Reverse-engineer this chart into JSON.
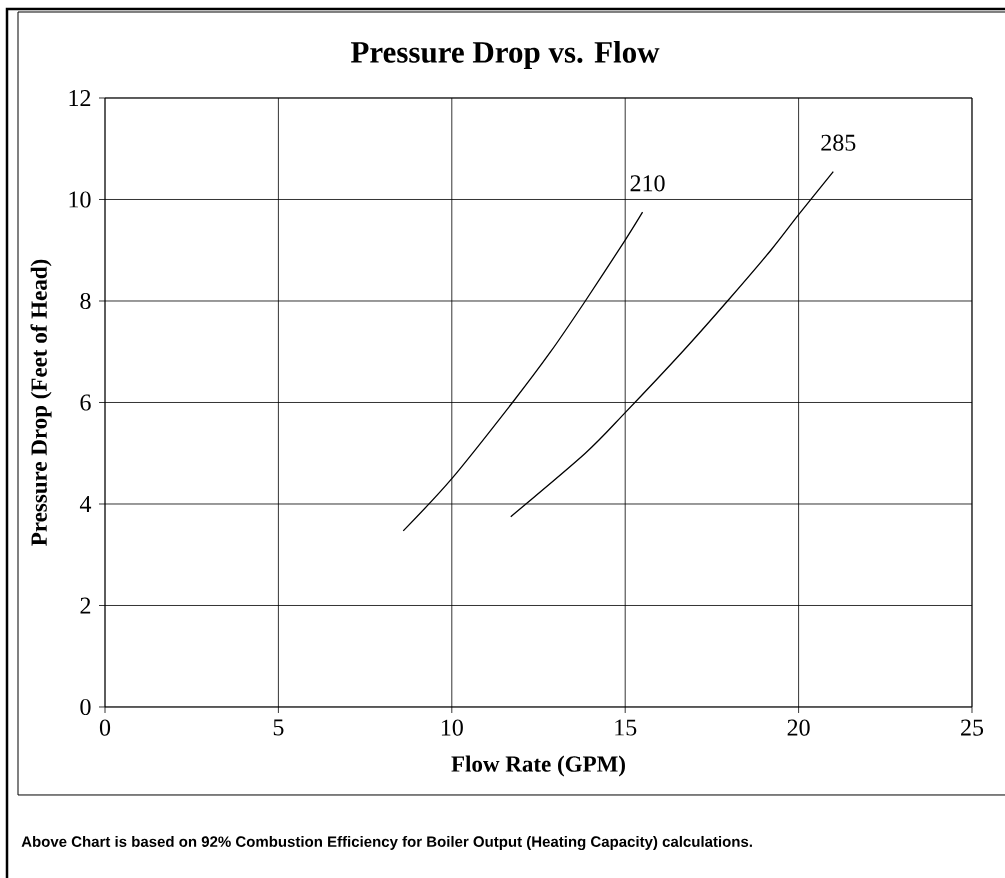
{
  "chart_data": {
    "type": "line",
    "title": "Pressure Drop vs. Flow",
    "xlabel": "Flow Rate (GPM)",
    "ylabel": "Pressure Drop (Feet of Head)",
    "xlim": [
      0,
      25
    ],
    "ylim": [
      0,
      12
    ],
    "xticks": [
      0,
      5,
      10,
      15,
      20,
      25
    ],
    "yticks": [
      0,
      2,
      4,
      6,
      8,
      10,
      12
    ],
    "grid": true,
    "marker": "none",
    "line_style": "solid",
    "series": [
      {
        "name": "210",
        "color": "#000000",
        "x": [
          8.6,
          10,
          11.75,
          12.85,
          13.85,
          15,
          15.5
        ],
        "values": [
          3.47,
          4.5,
          6,
          7,
          8,
          9.2,
          9.75
        ]
      },
      {
        "name": "285",
        "color": "#000000",
        "x": [
          11.7,
          13.85,
          15,
          16.65,
          17.95,
          19.2,
          20,
          21
        ],
        "values": [
          3.75,
          5,
          5.8,
          7,
          8,
          9,
          9.7,
          10.55
        ]
      }
    ],
    "annotations": [
      "Above Chart is based on 92% Combustion Efficiency for Boiler Output (Heating Capacity) calculations."
    ]
  }
}
